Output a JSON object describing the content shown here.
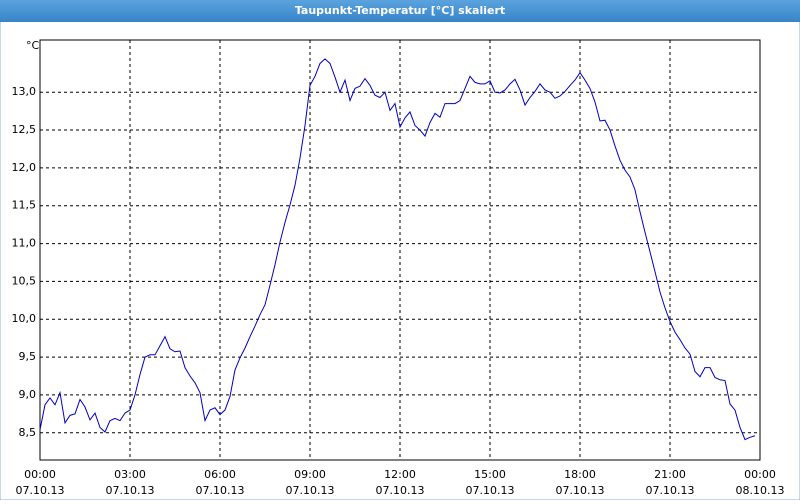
{
  "chart_data": {
    "type": "line",
    "title": "Taupunkt-Temperatur [°C] skaliert",
    "y_label": "°C",
    "x": [
      0,
      10,
      20,
      30,
      40,
      50,
      60,
      70,
      80,
      90,
      100,
      110,
      120,
      130,
      140,
      150,
      160,
      170,
      180,
      190,
      200,
      210,
      220,
      230,
      240,
      250,
      260,
      270,
      280,
      290,
      300,
      310,
      320,
      330,
      340,
      350,
      360,
      370,
      380,
      390,
      400,
      410,
      420,
      430,
      440,
      450,
      460,
      470,
      480,
      490,
      500,
      510,
      520,
      530,
      540,
      550,
      560,
      570,
      580,
      590,
      600,
      610,
      620,
      630,
      640,
      650,
      660,
      670,
      680,
      690,
      700,
      710,
      720,
      730,
      740,
      750,
      760,
      770,
      780,
      790,
      800,
      810,
      820,
      830,
      840,
      850,
      860,
      870,
      880,
      890,
      900,
      910,
      920,
      930,
      940,
      950,
      960,
      970,
      980,
      990,
      1000,
      1010,
      1020,
      1030,
      1040,
      1050,
      1060,
      1070,
      1080,
      1090,
      1100,
      1110,
      1120,
      1130,
      1140,
      1150,
      1160,
      1170,
      1180,
      1190,
      1200,
      1210,
      1220,
      1230,
      1240,
      1250,
      1260,
      1270,
      1280,
      1290,
      1300,
      1310,
      1320,
      1330,
      1340,
      1350,
      1360,
      1370,
      1380,
      1390,
      1400,
      1410,
      1420,
      1430
    ],
    "series": [
      {
        "name": "Taupunkt-Temperatur",
        "color": "#0000c0",
        "values": [
          8.54,
          8.87,
          8.96,
          8.87,
          9.03,
          8.63,
          8.73,
          8.75,
          8.94,
          8.84,
          8.67,
          8.76,
          8.57,
          8.51,
          8.66,
          8.69,
          8.66,
          8.76,
          8.8,
          9.0,
          9.27,
          9.5,
          9.53,
          9.53,
          9.65,
          9.77,
          9.61,
          9.57,
          9.58,
          9.36,
          9.25,
          9.16,
          9.03,
          8.66,
          8.8,
          8.83,
          8.74,
          8.8,
          8.98,
          9.33,
          9.49,
          9.62,
          9.77,
          9.91,
          10.06,
          10.19,
          10.45,
          10.72,
          11.02,
          11.28,
          11.51,
          11.77,
          12.13,
          12.56,
          13.09,
          13.21,
          13.38,
          13.44,
          13.38,
          13.2,
          13.0,
          13.16,
          12.89,
          13.05,
          13.08,
          13.18,
          13.09,
          12.96,
          12.93,
          13.0,
          12.76,
          12.85,
          12.54,
          12.66,
          12.74,
          12.56,
          12.5,
          12.42,
          12.6,
          12.72,
          12.67,
          12.85,
          12.85,
          12.85,
          12.89,
          13.05,
          13.21,
          13.13,
          13.11,
          13.11,
          13.15,
          13.0,
          12.99,
          13.03,
          13.11,
          13.17,
          13.03,
          12.83,
          12.93,
          13.01,
          13.11,
          13.03,
          13.0,
          12.92,
          12.95,
          13.01,
          13.09,
          13.16,
          13.26,
          13.16,
          13.05,
          12.87,
          12.62,
          12.63,
          12.5,
          12.29,
          12.1,
          11.97,
          11.88,
          11.71,
          11.42,
          11.15,
          10.89,
          10.63,
          10.36,
          10.15,
          9.97,
          9.83,
          9.73,
          9.62,
          9.54,
          9.31,
          9.24,
          9.36,
          9.36,
          9.23,
          9.2,
          9.19,
          8.88,
          8.8,
          8.57,
          8.41,
          8.44,
          8.46
        ]
      }
    ],
    "xlim": [
      0,
      1440
    ],
    "xticks": [
      {
        "value": 0,
        "label": "00:00"
      },
      {
        "value": 180,
        "label": "03:00"
      },
      {
        "value": 360,
        "label": "06:00"
      },
      {
        "value": 540,
        "label": "09:00"
      },
      {
        "value": 720,
        "label": "12:00"
      },
      {
        "value": 900,
        "label": "15:00"
      },
      {
        "value": 1080,
        "label": "18:00"
      },
      {
        "value": 1260,
        "label": "21:00"
      },
      {
        "value": 1440,
        "label": "00:00"
      }
    ],
    "xtick_dates": [
      "07.10.13",
      "07.10.13",
      "07.10.13",
      "07.10.13",
      "07.10.13",
      "07.10.13",
      "07.10.13",
      "07.10.13",
      "08.10.13"
    ],
    "ylim": [
      8.14,
      13.69
    ],
    "yticks": [
      {
        "value": 8.5,
        "label": "8,5"
      },
      {
        "value": 9,
        "label": "9,0"
      },
      {
        "value": 9.5,
        "label": "9,5"
      },
      {
        "value": 10,
        "label": "10,0"
      },
      {
        "value": 10.5,
        "label": "10,5"
      },
      {
        "value": 11,
        "label": "11,0"
      },
      {
        "value": 11.5,
        "label": "11,5"
      },
      {
        "value": 12,
        "label": "12,0"
      },
      {
        "value": 12.5,
        "label": "12,5"
      },
      {
        "value": 13,
        "label": "13,0"
      }
    ],
    "grid": true
  }
}
